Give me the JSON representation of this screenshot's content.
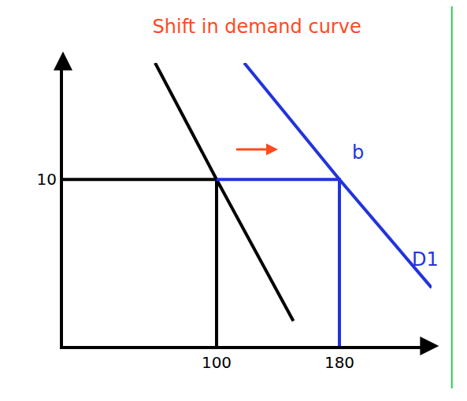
{
  "chart_data": {
    "type": "line",
    "title": "Shift in demand curve",
    "title_color": "#ff4a1c",
    "xlim": [
      0,
      240
    ],
    "ylim": [
      0,
      17
    ],
    "xticks": [
      100,
      180
    ],
    "yticks": [
      10
    ],
    "grid": false,
    "series": [
      {
        "color": "#000000",
        "x": [
          60,
          100,
          150
        ],
        "values": [
          17,
          10,
          1.5
        ]
      },
      {
        "color": "#2233dd",
        "x": [
          118,
          180,
          240
        ],
        "values": [
          17,
          10,
          3.5
        ]
      },
      {
        "color": "#000000",
        "x": [
          0,
          100,
          100
        ],
        "values": [
          10,
          10,
          0
        ]
      },
      {
        "color": "#2233dd",
        "x": [
          100,
          180,
          180
        ],
        "values": [
          10,
          10,
          0
        ]
      }
    ],
    "annotations": [
      {
        "text": "b",
        "x": 192,
        "y": 11.6,
        "color": "#2233dd"
      },
      {
        "text": "D1",
        "x": 236,
        "y": 5.2,
        "color": "#2233dd"
      }
    ],
    "shift_arrow": {
      "x": [
        112,
        140
      ],
      "y": 11.8,
      "color": "#ff4a1c"
    }
  }
}
